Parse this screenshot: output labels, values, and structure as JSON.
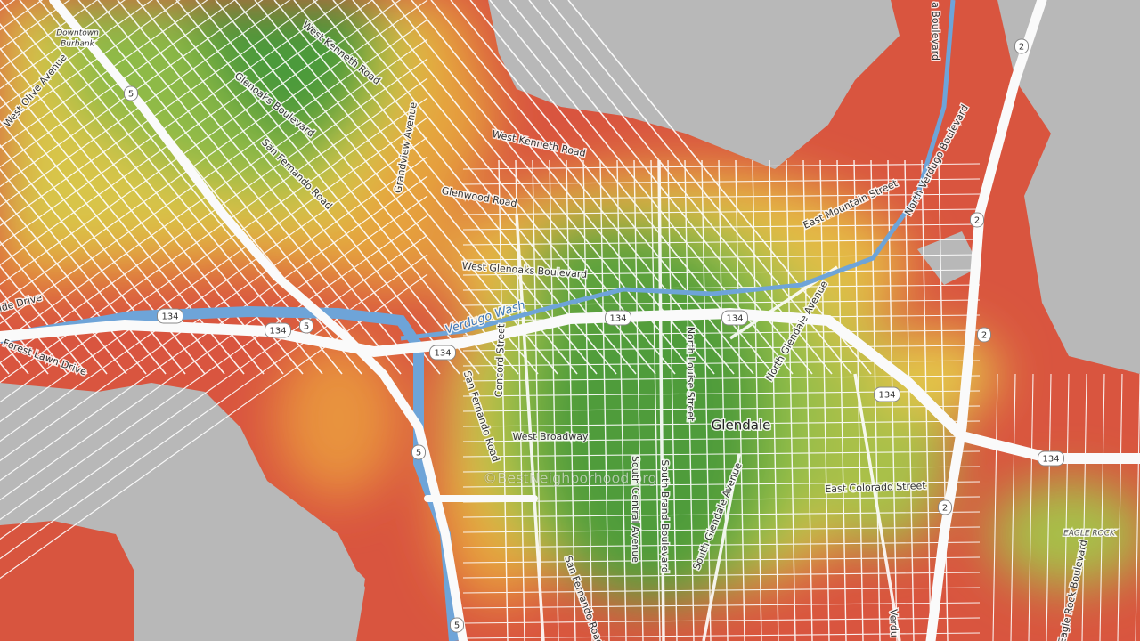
{
  "map": {
    "places": {
      "downtown_burbank": [
        "Downtown",
        "Burbank"
      ],
      "glendale": "Glendale",
      "eagle_rock": "EAGLE ROCK"
    },
    "streets": [
      "West Olive Avenue",
      "West Kenneth Road",
      "Glenoaks Boulevard",
      "San Fernando Road",
      "Grandview Avenue",
      "West Kenneth Road",
      "Glenwood Road",
      "West Glenoaks Boulevard",
      "Verdugo Wash",
      "Concord Street",
      "North Louise Street",
      "North Glendale Avenue",
      "East Mountain Street",
      "North Verdugo Boulevard",
      "a Boulevard",
      "Forest Lawn Drive",
      "rside Drive",
      "San Fernando Road",
      "West Broadway",
      "South Central Avenue",
      "South Brand Boulevard",
      "South Glendale Avenue",
      "East Colorado Street",
      "San Fernando Road",
      "Eagle Rock Boulevard",
      "Verdu"
    ],
    "shields": [
      "5",
      "5",
      "5",
      "5",
      "134",
      "134",
      "134",
      "134",
      "134",
      "134",
      "134",
      "2",
      "2",
      "2",
      "2"
    ],
    "watermark": "©BestNeighborhood.org"
  }
}
